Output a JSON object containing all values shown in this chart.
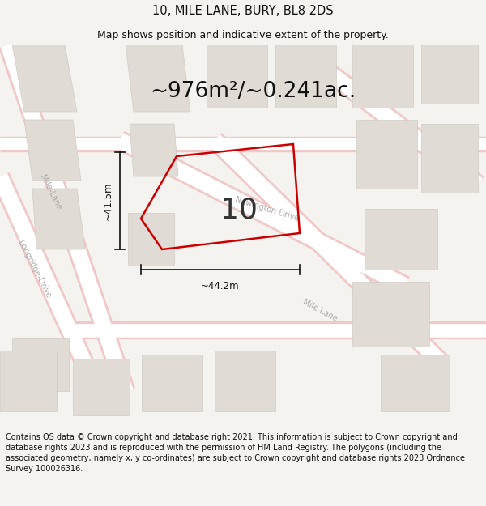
{
  "title": "10, MILE LANE, BURY, BL8 2DS",
  "subtitle": "Map shows position and indicative extent of the property.",
  "area_text": "~976m²/~0.241ac.",
  "label_number": "10",
  "dim_horizontal": "~44.2m",
  "dim_vertical": "~41.5m",
  "footer": "Contains OS data © Crown copyright and database right 2021. This information is subject to Crown copyright and database rights 2023 and is reproduced with the permission of HM Land Registry. The polygons (including the associated geometry, namely x, y co-ordinates) are subject to Crown copyright and database rights 2023 Ordnance Survey 100026316.",
  "bg_color": "#f5f3f0",
  "road_fill": "#ffffff",
  "road_edge_color": "#f0c8c8",
  "block_color": "#e0dbd5",
  "block_edge": "#d0cbc5",
  "plot_edge": "#cc0000",
  "plot_linewidth": 1.8,
  "title_fontsize": 10.5,
  "subtitle_fontsize": 9,
  "area_fontsize": 19,
  "label_fontsize": 26,
  "dim_fontsize": 8.5,
  "footer_fontsize": 7.0,
  "road_label_fontsize": 7.0,
  "road_label_color": "#aaaaaa",
  "dim_color": "#111111",
  "footer_color": "#111111",
  "footer_bg": "#ffffff"
}
